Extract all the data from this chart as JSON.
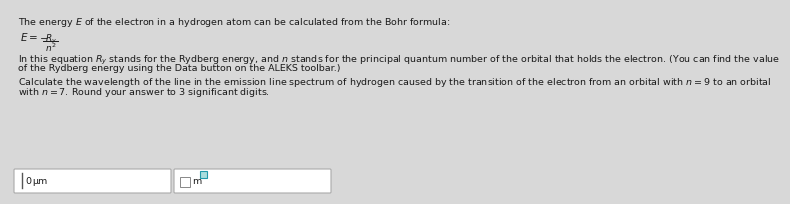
{
  "bg_color": "#d8d8d8",
  "text_color": "#1a1a1a",
  "title_line": "The energy $E$ of the electron in a hydrogen atom can be calculated from the Bohr formula:",
  "para1_line1": "In this equation $R_y$ stands for the Rydberg energy, and $n$ stands for the principal quantum number of the orbital that holds the electron. (You can find the value",
  "para1_line2": "of the Rydberg energy using the Data button on the ALEKS toolbar.)",
  "para2_line1": "Calculate the wavelength of the line in the emission line spectrum of hydrogen caused by the transition of the electron from an orbital with $n$ = 9 to an orbital",
  "para2_line2": "with $n$ = 7. Round your answer to 3 significant digits.",
  "box1_unit": "μm",
  "box2_unit": "m",
  "font_size_main": 6.8,
  "font_size_formula": 7.5
}
